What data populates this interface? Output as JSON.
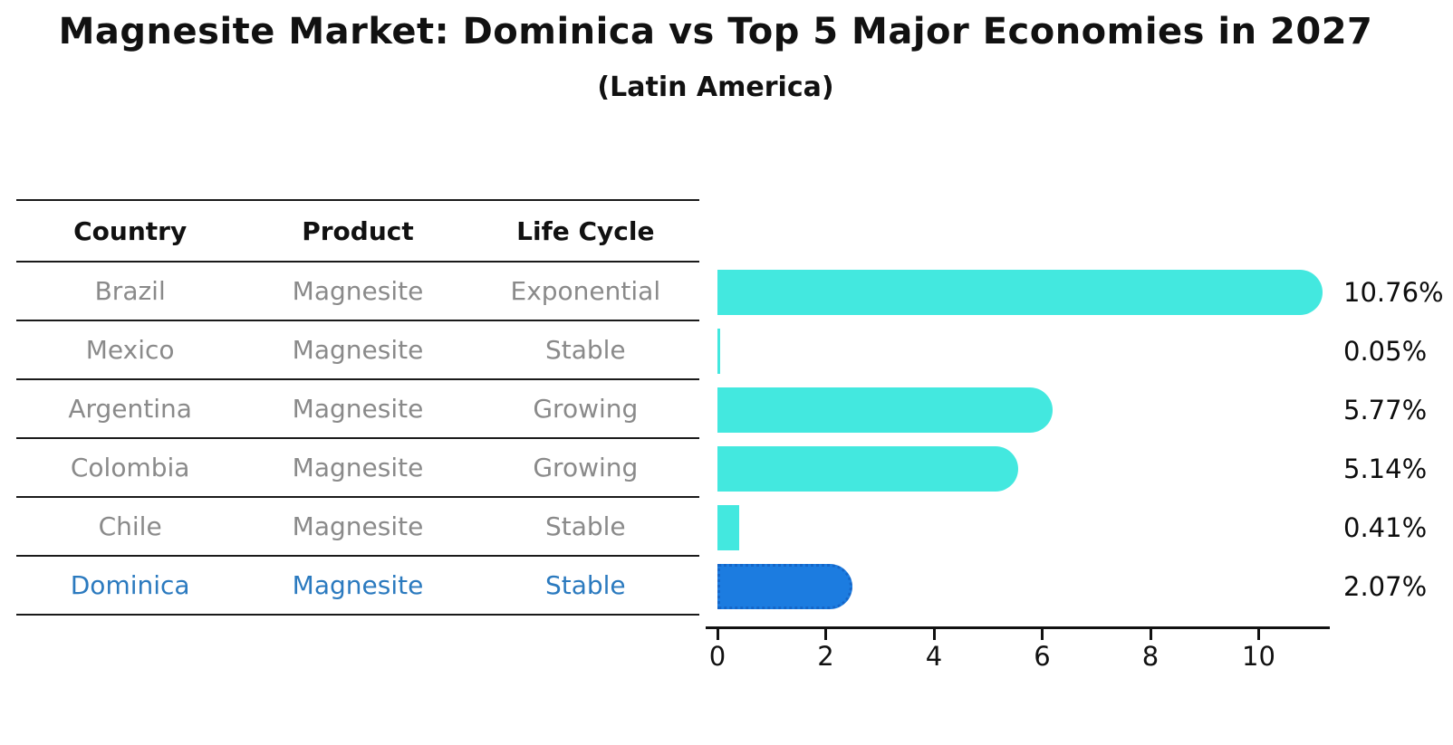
{
  "chart_data": {
    "type": "bar",
    "orientation": "horizontal",
    "title": "Magnesite Market: Dominica vs Top 5 Major Economies in 2027",
    "subtitle": "(Latin America)",
    "categories": [
      "Brazil",
      "Mexico",
      "Argentina",
      "Colombia",
      "Chile",
      "Dominica"
    ],
    "values": [
      10.76,
      0.05,
      5.77,
      5.14,
      0.41,
      2.07
    ],
    "value_labels": [
      "10.76%",
      "0.05%",
      "5.77%",
      "5.14%",
      "0.41%",
      "2.07%"
    ],
    "x_ticks": [
      0,
      2,
      4,
      6,
      8,
      10
    ],
    "xlim": [
      0,
      11.3
    ],
    "grid": false,
    "legend": null,
    "highlight_index": 5,
    "colors": {
      "bar": "#43E8DF",
      "highlight_bar": "#1C7CE0",
      "highlight_border": "#1566C8",
      "highlight_text": "#2B7ABF",
      "row_text": "#8a8a8a",
      "header_text": "#111111",
      "value_text": "#0d0d0d",
      "axis": "#111111"
    }
  },
  "table": {
    "columns": [
      "Country",
      "Product",
      "Life Cycle"
    ],
    "rows": [
      {
        "country": "Brazil",
        "product": "Magnesite",
        "life_cycle": "Exponential"
      },
      {
        "country": "Mexico",
        "product": "Magnesite",
        "life_cycle": "Stable"
      },
      {
        "country": "Argentina",
        "product": "Magnesite",
        "life_cycle": "Growing"
      },
      {
        "country": "Colombia",
        "product": "Magnesite",
        "life_cycle": "Growing"
      },
      {
        "country": "Chile",
        "product": "Magnesite",
        "life_cycle": "Stable"
      },
      {
        "country": "Dominica",
        "product": "Magnesite",
        "life_cycle": "Stable"
      }
    ]
  }
}
